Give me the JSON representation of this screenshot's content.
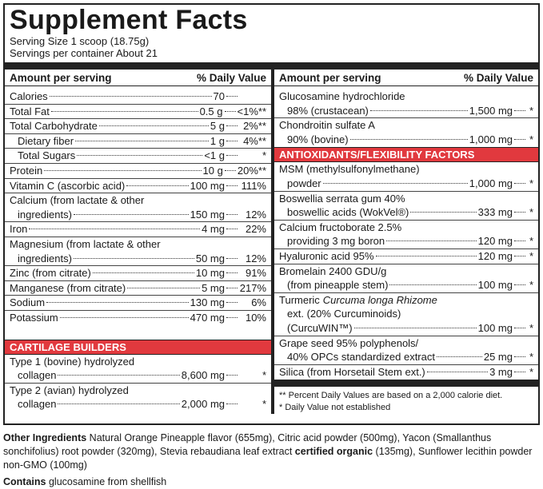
{
  "header": {
    "title": "Supplement Facts",
    "serving_size": "Serving Size 1 scoop (18.75g)",
    "servings": "Servings per container About 21"
  },
  "left": {
    "heading": "Amount per serving",
    "dv_heading": "% Daily Value",
    "rows": [
      {
        "name": [
          "Calories"
        ],
        "amount": "70"
      },
      {
        "name": [
          "Total Fat"
        ],
        "amount": "0.5 g",
        "dv": "<1%**"
      },
      {
        "name": [
          "Total Carbohydrate"
        ],
        "amount": "5 g",
        "dv": "2%**",
        "sub": [
          {
            "name": [
              "Dietary fiber"
            ],
            "amount": "1 g",
            "dv": "4%**"
          },
          {
            "name": [
              "Total Sugars"
            ],
            "amount": "<1 g",
            "dv": "*"
          }
        ]
      },
      {
        "name": [
          "Protein"
        ],
        "amount": "10 g",
        "dv": "20%**"
      },
      {
        "name": [
          "Vitamin C (ascorbic acid)"
        ],
        "amount": "100 mg",
        "dv": "111%"
      },
      {
        "name": [
          "Calcium (from lactate & other",
          "ingredients)"
        ],
        "amount": "150 mg",
        "dv": "12%"
      },
      {
        "name": [
          "Iron"
        ],
        "amount": "4 mg",
        "dv": "22%"
      },
      {
        "name": [
          "Magnesium (from lactate & other",
          "ingredients)"
        ],
        "amount": "50 mg",
        "dv": "12%"
      },
      {
        "name": [
          "Zinc (from citrate)"
        ],
        "amount": "10 mg",
        "dv": "91%"
      },
      {
        "name": [
          "Manganese (from citrate)"
        ],
        "amount": "5 mg",
        "dv": "217%"
      },
      {
        "name": [
          "Sodium"
        ],
        "amount": "130 mg",
        "dv": "6%"
      },
      {
        "name": [
          "Potassium"
        ],
        "amount": "470 mg",
        "dv": "10%"
      }
    ],
    "section": {
      "title": "CARTILAGE BUILDERS",
      "rows": [
        {
          "name": [
            "Type 1 (bovine) hydrolyzed",
            "collagen"
          ],
          "amount": "8,600 mg",
          "dv": "*"
        },
        {
          "name": [
            "Type 2 (avian) hydrolyzed",
            "collagen"
          ],
          "amount": "2,000 mg",
          "dv": "*"
        }
      ]
    }
  },
  "right": {
    "heading": "Amount per serving",
    "dv_heading": "% Daily Value",
    "rows": [
      {
        "name": [
          "Glucosamine hydrochloride",
          "98% (crustacean)"
        ],
        "amount": "1,500 mg",
        "dv": "*"
      },
      {
        "name": [
          "Chondroitin sulfate A",
          "90% (bovine)"
        ],
        "amount": "1,000 mg",
        "dv": "*"
      }
    ],
    "section": {
      "title": "ANTIOXIDANTS/FLEXIBILITY FACTORS",
      "rows": [
        {
          "name": [
            "MSM (methylsulfonylmethane)",
            "powder"
          ],
          "amount": "1,000 mg",
          "dv": "*"
        },
        {
          "name": [
            "Boswellia serrata gum 40%",
            "boswellic acids (WokVel®)"
          ],
          "amount": "333 mg",
          "dv": "*"
        },
        {
          "name": [
            "Calcium fructoborate 2.5%",
            "providing 3 mg boron"
          ],
          "amount": "120 mg",
          "dv": "*"
        },
        {
          "name": [
            "Hyaluronic acid 95%"
          ],
          "amount": "120 mg",
          "dv": "*"
        },
        {
          "name": [
            "Bromelain 2400 GDU/g",
            "(from pineapple stem)"
          ],
          "amount": "100 mg",
          "dv": "*"
        },
        {
          "name": [
            {
              "text": "Turmeric",
              "italic": "Curcuma longa Rhizome"
            },
            "ext. (20% Curcuminoids)",
            "(CurcuWIN™)"
          ],
          "amount": "100 mg",
          "dv": "*"
        },
        {
          "name": [
            "Grape seed 95% polyphenols/",
            "40% OPCs standardized extract"
          ],
          "amount": "25 mg",
          "dv": "*"
        },
        {
          "name": [
            "Silica (from Horsetail Stem ext.)"
          ],
          "amount": "3 mg",
          "dv": "*"
        }
      ]
    },
    "footnotes": [
      "** Percent Daily Values are based on a 2,000 calorie diet.",
      "* Daily Value not established"
    ]
  },
  "other_ingredients": {
    "label": "Other Ingredients",
    "text": "Natural Orange Pineapple flavor (655mg), Citric acid powder (500mg), Yacon (Smallanthus sonchifolius) root powder (320mg), Stevia rebaudiana leaf extract",
    "emphasis": "certified organic",
    "text_after": "(135mg), Sunflower lecithin powder non-GMO (100mg)"
  },
  "contains": {
    "label": "Contains",
    "text": "glucosamine from shellfish"
  }
}
